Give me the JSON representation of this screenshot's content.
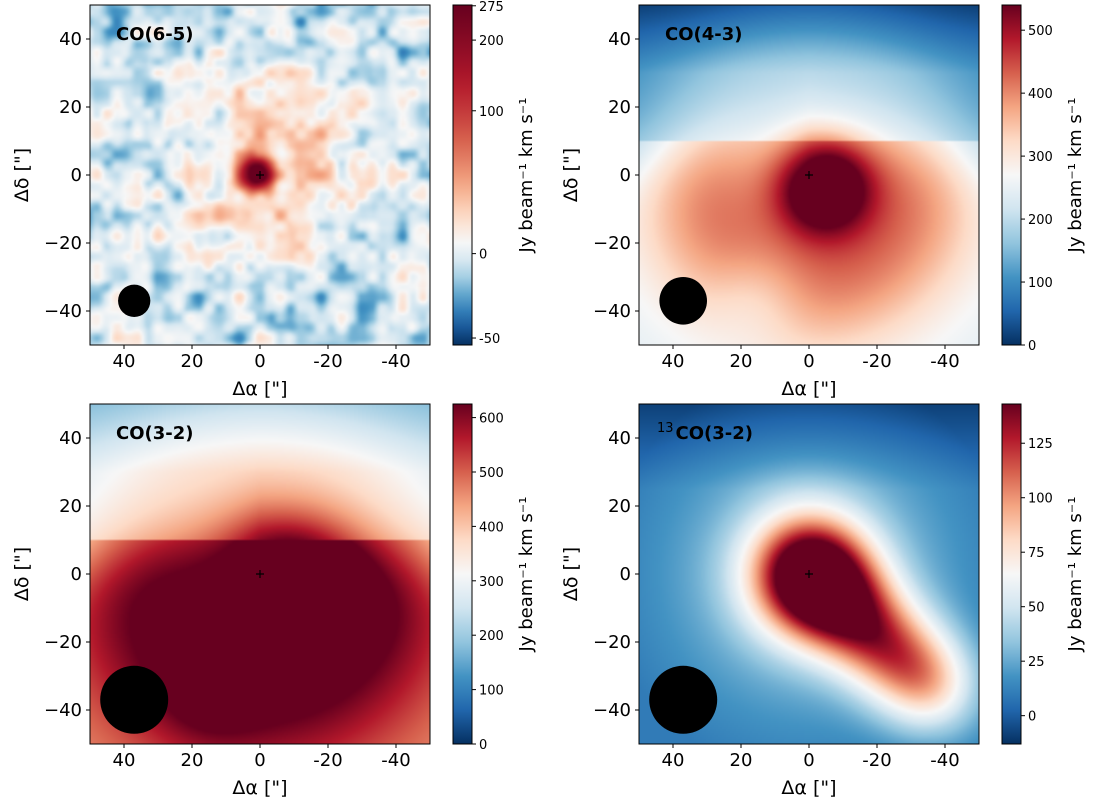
{
  "figure": {
    "description_free": true,
    "colorbar_label": "Jy beam⁻¹ km s⁻¹",
    "xlabel": "Δα [\"]",
    "ylabel": "Δδ [\"]",
    "colors": {
      "cmap_low": "#053061",
      "cmap_mid": "#f7f7f7",
      "cmap_high": "#67001f",
      "beam": "#000000",
      "contour": "#3a4f63"
    }
  },
  "chart_data": [
    {
      "type": "heatmap",
      "title": "CO(6-5)",
      "title_parts": {
        "sup": "",
        "main": "CO(6-5)"
      },
      "xlabel": "Δα [\"]",
      "ylabel": "Δδ [\"]",
      "xlim": [
        50,
        -50
      ],
      "ylim": [
        -50,
        50
      ],
      "xticks": [
        40,
        20,
        0,
        -20,
        -40
      ],
      "xtick_labels": [
        "40",
        "20",
        "0",
        "-20",
        "-40"
      ],
      "yticks": [
        40,
        20,
        0,
        -20,
        -40
      ],
      "ytick_labels": [
        "40",
        "20",
        "0",
        "−20",
        "−40"
      ],
      "colorbar": {
        "label": "Jy beam⁻¹ km s⁻¹",
        "range": [
          -55,
          277
        ],
        "ticks": [
          -50,
          0,
          100,
          200,
          275
        ],
        "tick_labels": [
          "-50",
          "0",
          "100",
          "200",
          "275"
        ],
        "norm": "asinh"
      },
      "beam": {
        "x": 37,
        "y": -37,
        "diameter_arcsec": 9.5
      },
      "center_marker": {
        "x": 0,
        "y": 0
      },
      "emission": {
        "peak": 275,
        "background": 25,
        "noise": 30,
        "core_sigma_arcsec": 3.5,
        "halo_amp": 60,
        "halo_sigma_arcsec": 18,
        "halo_offset": [
          -3,
          3
        ]
      }
    },
    {
      "type": "heatmap",
      "title": "CO(4-3)",
      "title_parts": {
        "sup": "",
        "main": "CO(4-3)"
      },
      "xlabel": "Δα [\"]",
      "ylabel": "Δδ [\"]",
      "xlim": [
        50,
        -50
      ],
      "ylim": [
        -50,
        50
      ],
      "xticks": [
        40,
        20,
        0,
        -20,
        -40
      ],
      "xtick_labels": [
        "40",
        "20",
        "0",
        "-20",
        "-40"
      ],
      "yticks": [
        40,
        20,
        0,
        -20,
        -40
      ],
      "ytick_labels": [
        "40",
        "20",
        "0",
        "−20",
        "−40"
      ],
      "colorbar": {
        "label": "Jy beam⁻¹ km s⁻¹",
        "range": [
          0,
          540
        ],
        "ticks": [
          0,
          100,
          200,
          300,
          400,
          500
        ],
        "tick_labels": [
          "0",
          "100",
          "200",
          "300",
          "400",
          "500"
        ],
        "norm": "linear"
      },
      "beam": {
        "x": 37,
        "y": -37,
        "diameter_arcsec": 14
      },
      "center_marker": {
        "x": 0,
        "y": 0
      },
      "emission": {
        "peak": 530,
        "background": 90,
        "core_offset": [
          -4,
          -3
        ],
        "core_sigma_arcsec": 10,
        "arc_amp": 180,
        "arc_radius_arcsec": 28,
        "arc_width_arcsec": 18,
        "plateau": 150
      }
    },
    {
      "type": "heatmap",
      "title": "CO(3-2)",
      "title_parts": {
        "sup": "",
        "main": "CO(3-2)"
      },
      "xlabel": "Δα [\"]",
      "ylabel": "Δδ [\"]",
      "xlim": [
        50,
        -50
      ],
      "ylim": [
        -50,
        50
      ],
      "xticks": [
        40,
        20,
        0,
        -20,
        -40
      ],
      "xtick_labels": [
        "40",
        "20",
        "0",
        "-20",
        "-40"
      ],
      "yticks": [
        40,
        20,
        0,
        -20,
        -40
      ],
      "ytick_labels": [
        "40",
        "20",
        "0",
        "−20",
        "−40"
      ],
      "colorbar": {
        "label": "Jy beam⁻¹ km s⁻¹",
        "range": [
          0,
          625
        ],
        "ticks": [
          0,
          100,
          200,
          300,
          400,
          500,
          600
        ],
        "tick_labels": [
          "0",
          "100",
          "200",
          "300",
          "400",
          "500",
          "600"
        ],
        "norm": "linear"
      },
      "beam": {
        "x": 37,
        "y": -37,
        "diameter_arcsec": 20
      },
      "center_marker": {
        "x": 0,
        "y": 0
      },
      "emission": {
        "peak": 620,
        "background": 240,
        "core_offset": [
          -8,
          -2
        ],
        "core_sigma_arcsec": 14,
        "arc_amp": 220,
        "arc_radius_arcsec": 30,
        "arc_width_arcsec": 22,
        "plateau": 200
      }
    },
    {
      "type": "heatmap",
      "title": "13CO(3-2)",
      "title_parts": {
        "sup": "13",
        "main": "CO(3-2)"
      },
      "xlabel": "Δα [\"]",
      "ylabel": "Δδ [\"]",
      "xlim": [
        50,
        -50
      ],
      "ylim": [
        -50,
        50
      ],
      "xticks": [
        40,
        20,
        0,
        -20,
        -40
      ],
      "xtick_labels": [
        "40",
        "20",
        "0",
        "-20",
        "-40"
      ],
      "yticks": [
        40,
        20,
        0,
        -20,
        -40
      ],
      "ytick_labels": [
        "40",
        "20",
        "0",
        "−20",
        "−40"
      ],
      "colorbar": {
        "label": "Jy beam⁻¹ km s⁻¹",
        "range": [
          -13,
          143
        ],
        "ticks": [
          0,
          25,
          50,
          75,
          100,
          125
        ],
        "tick_labels": [
          "0",
          "25",
          "50",
          "75",
          "100",
          "125"
        ],
        "norm": "linear"
      },
      "beam": {
        "x": 37,
        "y": -37,
        "diameter_arcsec": 20
      },
      "center_marker": {
        "x": 0,
        "y": 0
      },
      "emission": {
        "peak": 142,
        "background": 10,
        "core_offset": [
          0,
          0
        ],
        "core_sigma_arcsec": 13,
        "tail_amp": 80,
        "tail_to": [
          -38,
          -35
        ],
        "tail_sigma_arcsec": 10
      }
    }
  ]
}
